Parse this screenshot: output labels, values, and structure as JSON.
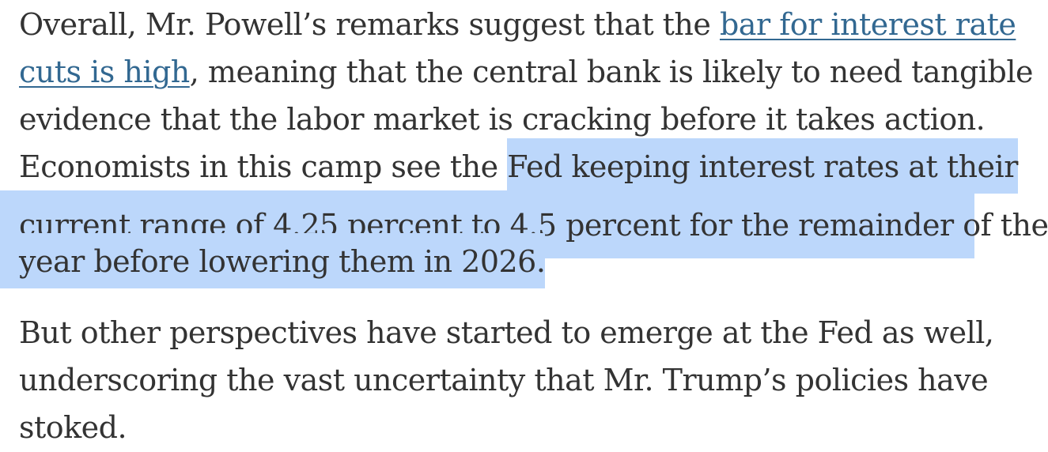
{
  "paragraphs": [
    {
      "lines": [
        {
          "segments": [
            {
              "text": "Overall, Mr. Powell’s remarks suggest that the ",
              "type": "plain"
            },
            {
              "text": "bar for interest rate",
              "type": "link"
            }
          ]
        },
        {
          "segments": [
            {
              "text": "cuts is high",
              "type": "link"
            },
            {
              "text": ", meaning that the central bank is likely to need tangible",
              "type": "plain"
            }
          ]
        },
        {
          "segments": [
            {
              "text": "evidence that the labor market is cracking before it takes action.",
              "type": "plain"
            }
          ]
        },
        {
          "segments": [
            {
              "text": "Economists in this camp see the ",
              "type": "plain"
            },
            {
              "text": "Fed keeping interest rates at their",
              "type": "highlight"
            }
          ]
        },
        {
          "segments": [
            {
              "text": "current range of 4.25 percent to 4.5 percent for the remainder of the",
              "type": "highlight"
            }
          ]
        },
        {
          "segments": [
            {
              "text": "year before lowering them in 2026.",
              "type": "highlight"
            }
          ]
        }
      ]
    },
    {
      "lines": [
        {
          "segments": [
            {
              "text": "But other perspectives have started to emerge at the Fed as well,",
              "type": "plain"
            }
          ]
        },
        {
          "segments": [
            {
              "text": "underscoring the vast uncertainty that Mr. Trump’s policies have",
              "type": "plain"
            }
          ]
        },
        {
          "segments": [
            {
              "text": "stoked.",
              "type": "plain"
            }
          ]
        }
      ]
    }
  ],
  "colors": {
    "text": "#333333",
    "link": "#326891",
    "highlight": "#bcd7fb",
    "background": "#ffffff"
  }
}
